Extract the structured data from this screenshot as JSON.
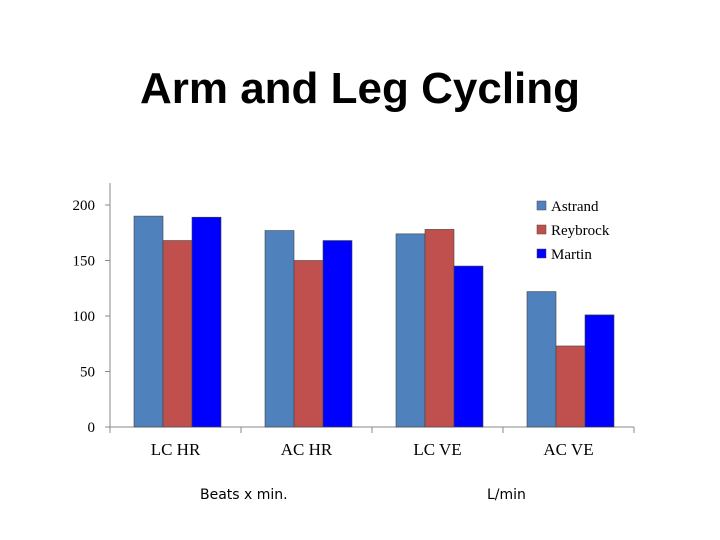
{
  "chart_data": {
    "type": "bar",
    "title": "Arm and Leg Cycling",
    "categories": [
      "LC HR",
      "AC HR",
      "LC VE",
      "AC VE"
    ],
    "series": [
      {
        "name": "Astrand",
        "values": [
          190,
          177,
          174,
          122
        ],
        "color": "#4f81bd"
      },
      {
        "name": "Reybrock",
        "values": [
          168,
          150,
          178,
          73
        ],
        "color": "#c0504d"
      },
      {
        "name": "Martin",
        "values": [
          189,
          168,
          145,
          101
        ],
        "color": "#0000ff"
      }
    ],
    "ylim": [
      0,
      200
    ],
    "yticks": [
      0,
      50,
      100,
      150,
      200
    ],
    "grid": false,
    "legend": "top-right"
  },
  "notes": {
    "hr_unit": "Beats x min.",
    "ve_unit": "L/min"
  }
}
